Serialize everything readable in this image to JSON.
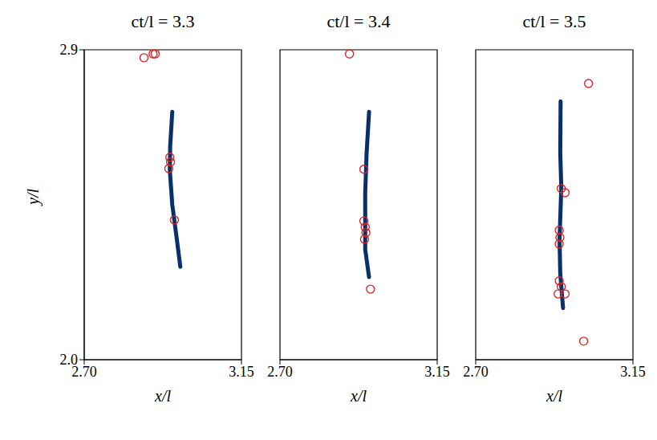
{
  "chart_data": [
    {
      "type": "scatter",
      "title": "ct/l = 3.3",
      "x_label": "x/l",
      "y_label": "y/l",
      "xlim": [
        2.7,
        3.15
      ],
      "ylim": [
        2.0,
        2.9
      ],
      "xticks": [
        {
          "value": 2.7,
          "label": "2.70"
        },
        3.15
      ],
      "yticks": [
        {
          "value": 2.0,
          "label": "2.0"
        },
        2.9
      ],
      "series": [
        {
          "type": "line",
          "color": "#08306b",
          "x": [
            2.952,
            2.946,
            2.945,
            2.952,
            2.965,
            2.975
          ],
          "values": [
            2.72,
            2.62,
            2.55,
            2.45,
            2.35,
            2.27
          ]
        },
        {
          "type": "scatter",
          "color": "#d62728",
          "marker": "circle",
          "x": [
            2.871,
            2.897,
            2.903,
            2.945,
            2.947,
            2.942,
            2.958
          ],
          "values": [
            2.877,
            2.888,
            2.888,
            2.588,
            2.574,
            2.555,
            2.406
          ]
        }
      ]
    },
    {
      "type": "scatter",
      "title": "ct/l = 3.4",
      "x_label": "x/l",
      "xlim": [
        2.7,
        3.15
      ],
      "ylim": [
        2.0,
        2.9
      ],
      "xticks": [
        {
          "value": 2.7,
          "label": "2.70"
        },
        3.15
      ],
      "tick_labels": "x",
      "series": [
        {
          "type": "line",
          "color": "#08306b",
          "x": [
            2.955,
            2.948,
            2.944,
            2.944,
            2.955
          ],
          "values": [
            2.72,
            2.6,
            2.485,
            2.32,
            2.24
          ]
        },
        {
          "type": "scatter",
          "color": "#d62728",
          "marker": "circle",
          "x": [
            2.899,
            2.94,
            2.94,
            2.944,
            2.946,
            2.942,
            2.959
          ],
          "values": [
            2.888,
            2.553,
            2.403,
            2.385,
            2.369,
            2.35,
            2.205
          ]
        }
      ]
    },
    {
      "type": "scatter",
      "title": "ct/l = 3.5",
      "x_label": "x/l",
      "xlim": [
        2.7,
        3.15
      ],
      "ylim": [
        2.0,
        2.9
      ],
      "xticks": [
        {
          "value": 2.7,
          "label": "2.70"
        },
        3.15
      ],
      "tick_labels": "x",
      "series": [
        {
          "type": "line",
          "color": "#08306b",
          "x": [
            2.943,
            2.942,
            2.945,
            2.94,
            2.942,
            2.95
          ],
          "values": [
            2.75,
            2.6,
            2.5,
            2.35,
            2.25,
            2.15
          ]
        },
        {
          "type": "scatter",
          "color": "#d62728",
          "marker": "circle",
          "x": [
            3.023,
            2.945,
            2.956,
            2.939,
            2.941,
            2.939,
            2.939,
            2.945,
            2.956,
            2.936,
            3.009
          ],
          "values": [
            2.802,
            2.497,
            2.485,
            2.376,
            2.355,
            2.336,
            2.229,
            2.212,
            2.191,
            2.191,
            2.054
          ]
        }
      ]
    }
  ]
}
